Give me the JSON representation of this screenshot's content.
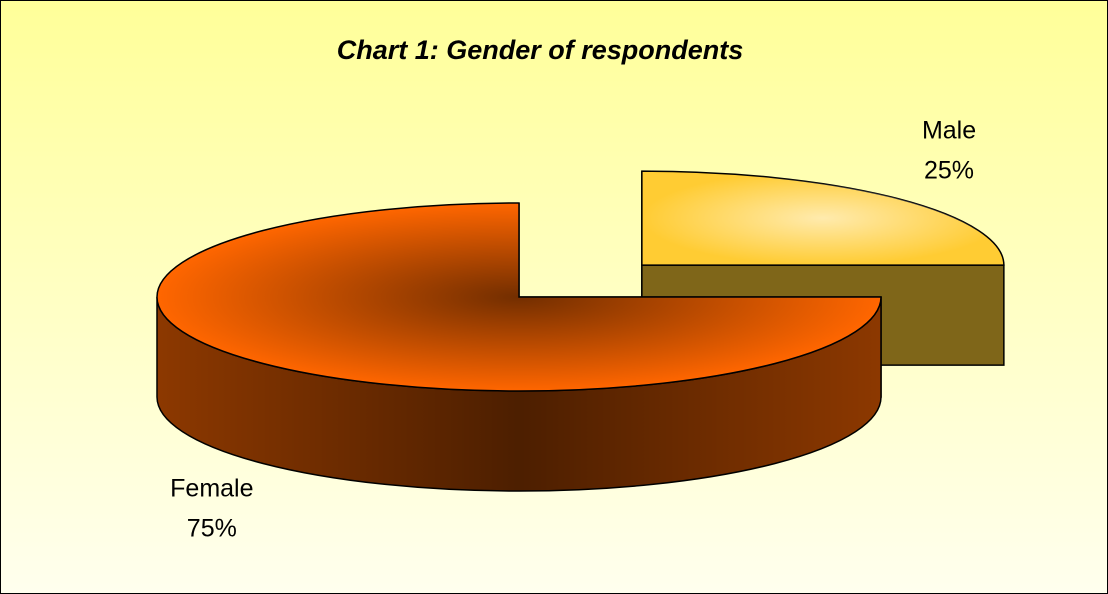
{
  "chart_data": {
    "type": "pie",
    "title": "Chart 1: Gender of respondents",
    "categories": [
      "Female",
      "Male"
    ],
    "values": [
      75,
      25
    ],
    "value_labels": [
      "75%",
      "25%"
    ],
    "colors": [
      "#ff6600",
      "#ffcc33"
    ]
  }
}
